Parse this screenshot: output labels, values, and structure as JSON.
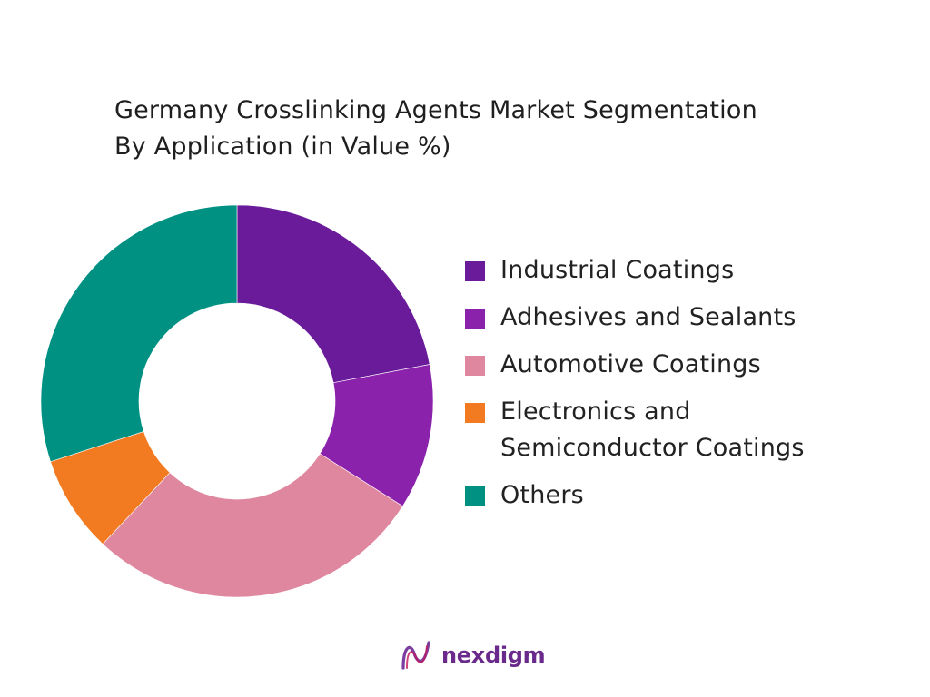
{
  "title_line1": "Germany Crosslinking Agents Market Segmentation",
  "title_line2": "By Application (in Value %)",
  "brand": {
    "name": "nexdigm",
    "logo_icon": "nexdigm-wave-logo-icon",
    "color": "#6a2a8c"
  },
  "chart_data": {
    "type": "pie",
    "donut": true,
    "title": "Germany Crosslinking Agents Market Segmentation By Application (in Value %)",
    "legend_position": "right",
    "start_angle_deg": 0,
    "direction": "clockwise",
    "categories": [
      "Industrial Coatings",
      "Adhesives and Sealants",
      "Automotive Coatings",
      "Electronics and\nSemiconductor Coatings",
      "Others"
    ],
    "values": [
      22,
      12,
      28,
      8,
      30
    ],
    "colors": [
      "#6a1b9a",
      "#8b22ab",
      "#df879f",
      "#f27b22",
      "#009183"
    ]
  }
}
